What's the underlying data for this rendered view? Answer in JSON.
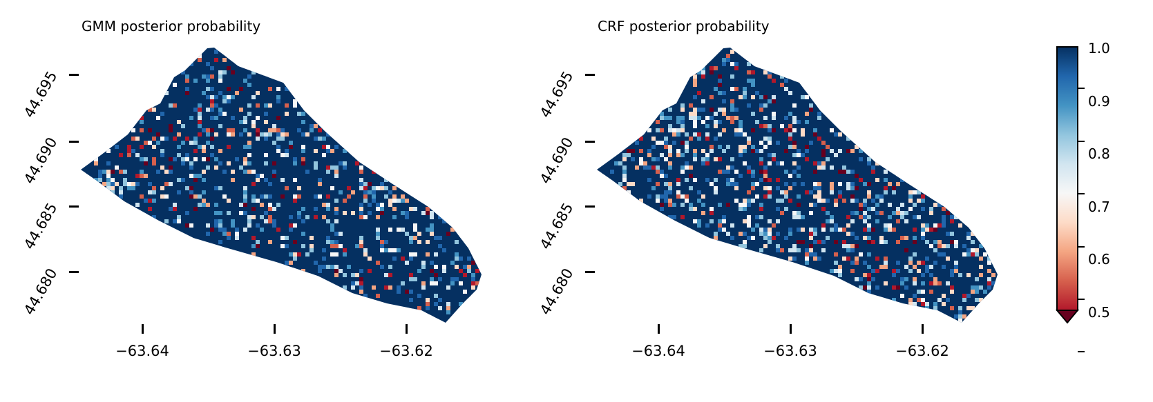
{
  "chart_data": [
    {
      "type": "heatmap",
      "title": "GMM posterior probability",
      "xlabel": "",
      "ylabel": "",
      "xticks": [
        "−63.64",
        "−63.63",
        "−63.62"
      ],
      "yticks": [
        "44.695",
        "44.690",
        "44.685",
        "44.680"
      ],
      "xlim": [
        -63.645,
        -63.614
      ],
      "ylim": [
        44.676,
        44.698
      ],
      "colormap": "RdBu",
      "predominant_range": [
        0.9,
        1.0
      ]
    },
    {
      "type": "heatmap",
      "title": "CRF posterior probability",
      "xlabel": "",
      "ylabel": "",
      "xticks": [
        "−63.64",
        "−63.63",
        "−63.62"
      ],
      "yticks": [
        "44.695",
        "44.690",
        "44.685",
        "44.680"
      ],
      "xlim": [
        -63.645,
        -63.614
      ],
      "ylim": [
        44.676,
        44.698
      ],
      "colormap": "RdBu",
      "predominant_range": [
        0.8,
        1.0
      ]
    }
  ],
  "colorbar": {
    "ticks": [
      "0.5",
      "0.6",
      "0.7",
      "0.8",
      "0.9",
      "1.0"
    ],
    "range": [
      0.5,
      1.0
    ],
    "extend": "min",
    "colors": [
      "#67001f",
      "#b2182b",
      "#d6604d",
      "#f4a582",
      "#fddbc7",
      "#f7f7f7",
      "#d1e5f0",
      "#92c5de",
      "#4393c3",
      "#2166ac",
      "#053061"
    ]
  }
}
